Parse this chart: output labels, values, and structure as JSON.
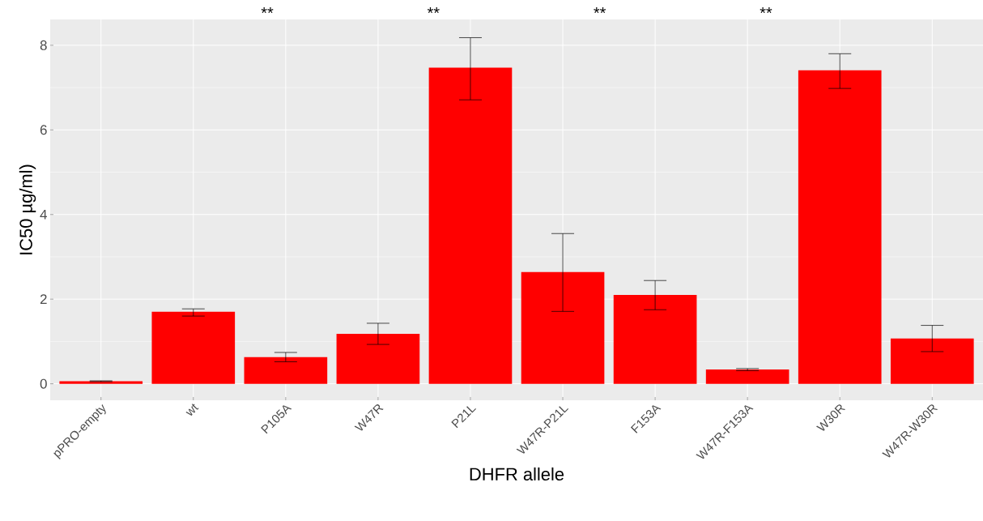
{
  "chart_data": {
    "type": "bar",
    "xlabel": "DHFR allele",
    "ylabel": "IC50 µg/ml)",
    "categories": [
      "pPRO-empty",
      "wt",
      "P105A",
      "W47R",
      "P21L",
      "W47R-P21L",
      "F153A",
      "W47R-F153A",
      "W30R",
      "W47R-W30R"
    ],
    "values": [
      0.06,
      1.7,
      0.63,
      1.18,
      7.47,
      2.64,
      2.1,
      0.34,
      7.41,
      1.07
    ],
    "errors": [
      [
        0.05,
        0.07
      ],
      [
        1.6,
        1.77
      ],
      [
        0.52,
        0.74
      ],
      [
        0.93,
        1.43
      ],
      [
        6.71,
        8.18
      ],
      [
        1.71,
        3.55
      ],
      [
        1.75,
        2.44
      ],
      [
        0.31,
        0.36
      ],
      [
        6.98,
        7.8
      ],
      [
        0.76,
        1.38
      ]
    ],
    "color": "#ff0000",
    "ylim": [
      -0.39,
      8.61
    ],
    "yticks": [
      0,
      2,
      4,
      6,
      8
    ],
    "grid": true,
    "annotations": [
      "**",
      "**",
      "**",
      "**"
    ]
  }
}
